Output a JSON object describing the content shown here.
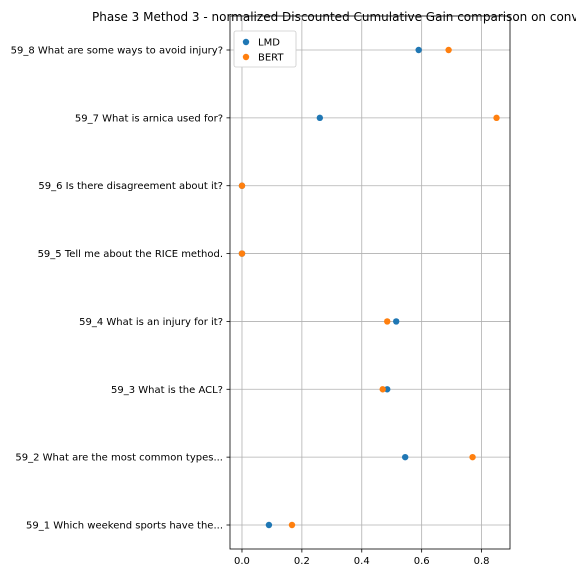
{
  "chart_data": {
    "type": "scatter",
    "title": "Phase 3 Method 3 - normalized Discounted Cumulative Gain comparison on conv",
    "xlabel": "",
    "ylabel": "",
    "xlim": [
      -0.04,
      0.895
    ],
    "x_ticks": [
      "0.0",
      "0.2",
      "0.4",
      "0.6",
      "0.8"
    ],
    "x_tick_values": [
      0.0,
      0.2,
      0.4,
      0.6,
      0.8
    ],
    "categories": [
      "59_1 Which weekend sports have the...",
      "59_2 What are the most common types...",
      "59_3 What is the ACL?",
      "59_4 What is an injury for it?",
      "59_5 Tell me about the RICE method.",
      "59_6 Is there disagreement about it?",
      "59_7 What is arnica used for?",
      "59_8 What are some ways to avoid injury?"
    ],
    "series": [
      {
        "name": "LMD",
        "color": "#1f77b4",
        "values": [
          0.09,
          0.545,
          0.485,
          0.515,
          0.0,
          0.0,
          0.26,
          0.59
        ]
      },
      {
        "name": "BERT",
        "color": "#ff7f0e",
        "values": [
          0.167,
          0.77,
          0.47,
          0.485,
          0.0,
          0.0,
          0.85,
          0.69
        ]
      }
    ],
    "grid": true,
    "legend_position": "top-left"
  }
}
